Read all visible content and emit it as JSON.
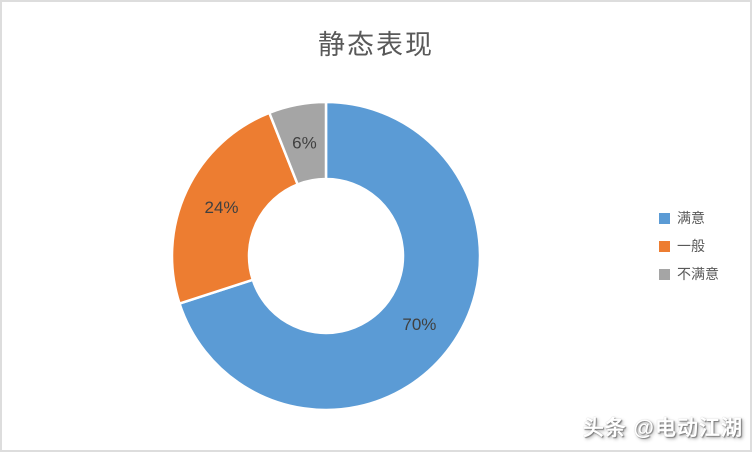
{
  "chart_data": {
    "type": "pie",
    "subtype": "donut",
    "title": "静态表现",
    "categories": [
      "满意",
      "一般",
      "不满意"
    ],
    "values": [
      70,
      24,
      6
    ],
    "data_labels": [
      "70%",
      "24%",
      "6%"
    ],
    "colors": [
      "#5B9BD5",
      "#ED7D31",
      "#A5A5A5"
    ],
    "start_angle_deg": 0,
    "direction": "clockwise",
    "donut_hole_ratio": 0.5,
    "segment_border_color": "#FFFFFF",
    "legend_position": "right",
    "title_color": "#595959",
    "legend_text_color": "#595959",
    "data_label_color": "#404040",
    "grid": "off"
  },
  "watermark": {
    "text": "头条 @电动江湖"
  }
}
